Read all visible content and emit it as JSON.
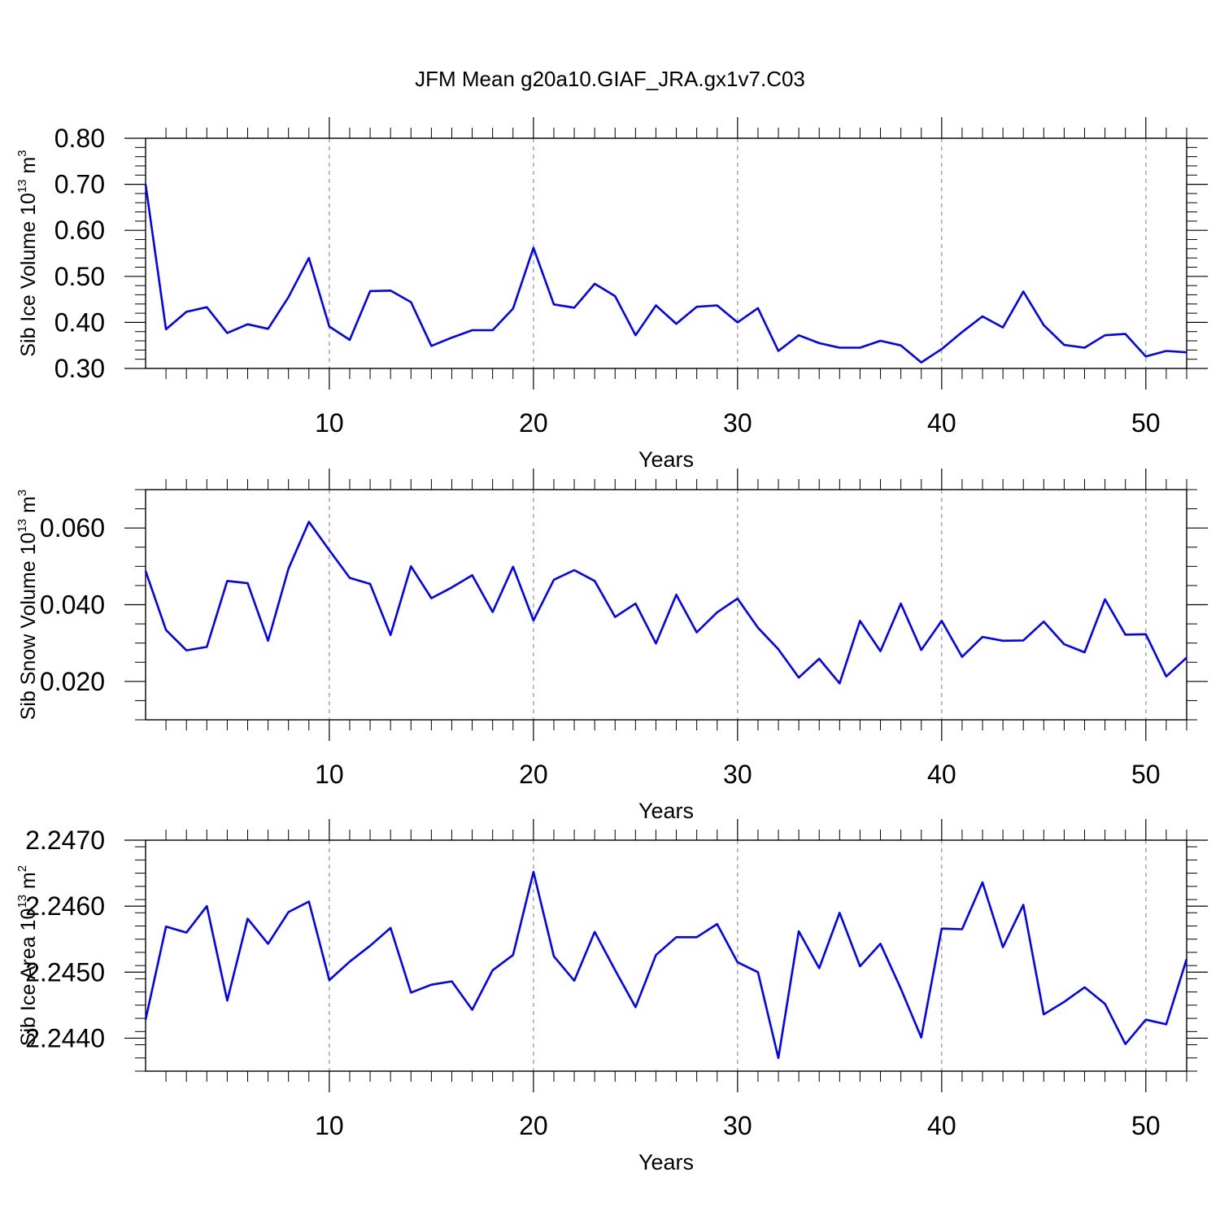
{
  "title": "JFM Mean g20a10.GIAF_JRA.gx1v7.C03",
  "colors": {
    "series": "#0000ff",
    "axes": "#000000",
    "grid": "#999999"
  },
  "chart_data": [
    {
      "type": "line",
      "ylabel": "Sib Ice Volume 10",
      "ylabel_sup": "13",
      "ylabel_unit": " m",
      "ylabel_unit_sup": "3",
      "xlabel": "Years",
      "xlim": [
        1,
        52
      ],
      "ylim": [
        0.3,
        0.8
      ],
      "x_ticks": [
        10,
        20,
        30,
        40,
        50
      ],
      "x_tick_labels": [
        "10",
        "20",
        "30",
        "40",
        "50"
      ],
      "y_ticks": [
        0.3,
        0.4,
        0.5,
        0.6,
        0.7,
        0.8
      ],
      "y_tick_labels": [
        "0.30",
        "0.40",
        "0.50",
        "0.60",
        "0.70",
        "0.80"
      ],
      "y_minor_step": 0.02,
      "grid": "vertical dashed at major x ticks",
      "x": [
        1,
        2,
        3,
        4,
        5,
        6,
        7,
        8,
        9,
        10,
        11,
        12,
        13,
        14,
        15,
        16,
        17,
        18,
        19,
        20,
        21,
        22,
        23,
        24,
        25,
        26,
        27,
        28,
        29,
        30,
        31,
        32,
        33,
        34,
        35,
        36,
        37,
        38,
        39,
        40,
        41,
        42,
        43,
        44,
        45,
        46,
        47,
        48,
        49,
        50,
        51,
        52
      ],
      "values": [
        0.7,
        0.385,
        0.423,
        0.433,
        0.377,
        0.396,
        0.386,
        0.455,
        0.54,
        0.391,
        0.362,
        0.468,
        0.469,
        0.444,
        0.349,
        0.367,
        0.383,
        0.383,
        0.43,
        0.562,
        0.439,
        0.432,
        0.484,
        0.457,
        0.372,
        0.437,
        0.397,
        0.434,
        0.437,
        0.4,
        0.431,
        0.338,
        0.372,
        0.355,
        0.345,
        0.345,
        0.36,
        0.35,
        0.313,
        0.342,
        0.379,
        0.413,
        0.389,
        0.467,
        0.394,
        0.351,
        0.345,
        0.372,
        0.375,
        0.326,
        0.338,
        0.335
      ]
    },
    {
      "type": "line",
      "ylabel": "Sib Snow Volume 10",
      "ylabel_sup": "13",
      "ylabel_unit": " m",
      "ylabel_unit_sup": "3",
      "xlabel": "Years",
      "xlim": [
        1,
        52
      ],
      "ylim": [
        0.01,
        0.07
      ],
      "x_ticks": [
        10,
        20,
        30,
        40,
        50
      ],
      "x_tick_labels": [
        "10",
        "20",
        "30",
        "40",
        "50"
      ],
      "y_ticks": [
        0.02,
        0.04,
        0.06
      ],
      "y_tick_labels": [
        "0.020",
        "0.040",
        "0.060"
      ],
      "y_minor_step": 0.005,
      "grid": "vertical dashed at major x ticks",
      "x": [
        1,
        2,
        3,
        4,
        5,
        6,
        7,
        8,
        9,
        10,
        11,
        12,
        13,
        14,
        15,
        16,
        17,
        18,
        19,
        20,
        21,
        22,
        23,
        24,
        25,
        26,
        27,
        28,
        29,
        30,
        31,
        32,
        33,
        34,
        35,
        36,
        37,
        38,
        39,
        40,
        41,
        42,
        43,
        44,
        45,
        46,
        47,
        48,
        49,
        50,
        51,
        52
      ],
      "values": [
        0.0488,
        0.0334,
        0.0281,
        0.029,
        0.0462,
        0.0456,
        0.0306,
        0.0494,
        0.0616,
        0.0542,
        0.047,
        0.0454,
        0.0321,
        0.05,
        0.0417,
        0.0445,
        0.0477,
        0.0381,
        0.0499,
        0.0359,
        0.0465,
        0.049,
        0.0462,
        0.0368,
        0.0403,
        0.0299,
        0.0426,
        0.0328,
        0.038,
        0.0416,
        0.034,
        0.0284,
        0.021,
        0.0259,
        0.0195,
        0.0358,
        0.0279,
        0.0403,
        0.0282,
        0.0358,
        0.0264,
        0.0316,
        0.0306,
        0.0307,
        0.0356,
        0.0297,
        0.0276,
        0.0414,
        0.0322,
        0.0323,
        0.0213,
        0.0262
      ]
    },
    {
      "type": "line",
      "ylabel": "Sib Ice Area 10",
      "ylabel_sup": "13",
      "ylabel_unit": " m",
      "ylabel_unit_sup": "2",
      "xlabel": "Years",
      "xlim": [
        1,
        52
      ],
      "ylim": [
        2.2435,
        2.247
      ],
      "x_ticks": [
        10,
        20,
        30,
        40,
        50
      ],
      "x_tick_labels": [
        "10",
        "20",
        "30",
        "40",
        "50"
      ],
      "y_ticks": [
        2.244,
        2.245,
        2.246,
        2.247
      ],
      "y_tick_labels": [
        "2.2440",
        "2.2450",
        "2.2460",
        "2.2470"
      ],
      "y_minor_step": 0.0002,
      "grid": "vertical dashed at major x ticks",
      "x": [
        1,
        2,
        3,
        4,
        5,
        6,
        7,
        8,
        9,
        10,
        11,
        12,
        13,
        14,
        15,
        16,
        17,
        18,
        19,
        20,
        21,
        22,
        23,
        24,
        25,
        26,
        27,
        28,
        29,
        30,
        31,
        32,
        33,
        34,
        35,
        36,
        37,
        38,
        39,
        40,
        41,
        42,
        43,
        44,
        45,
        46,
        47,
        48,
        49,
        50,
        51,
        52
      ],
      "values": [
        2.24428,
        2.24569,
        2.2456,
        2.246,
        2.24457,
        2.24581,
        2.24543,
        2.24591,
        2.24607,
        2.24488,
        2.24516,
        2.2454,
        2.24567,
        2.24469,
        2.24481,
        2.24486,
        2.24443,
        2.24503,
        2.24526,
        2.24652,
        2.24524,
        2.24487,
        2.24561,
        2.24503,
        2.24447,
        2.24526,
        2.24553,
        2.24553,
        2.24573,
        2.24515,
        2.245,
        2.2437,
        2.24562,
        2.24506,
        2.2459,
        2.24509,
        2.24543,
        2.24475,
        2.24401,
        2.24566,
        2.24565,
        2.24636,
        2.24538,
        2.24602,
        2.24436,
        2.24455,
        2.24477,
        2.24452,
        2.24391,
        2.24428,
        2.24421,
        2.2452
      ]
    }
  ]
}
